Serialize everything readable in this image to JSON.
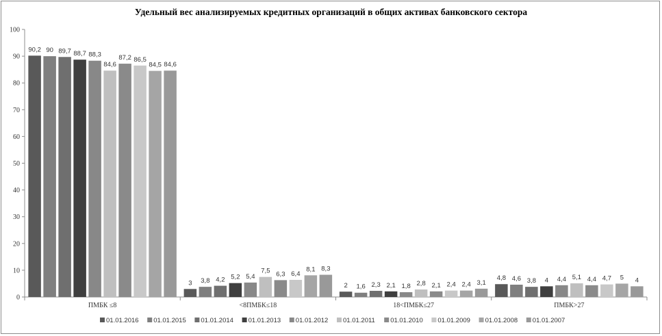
{
  "chart_data": {
    "type": "bar",
    "title": "Удельный вес анализируемых кредитных организаций в общих активах банковского сектора",
    "xlabel": "",
    "ylabel": "",
    "ylim": [
      0,
      100
    ],
    "yticks": [
      "0",
      "10",
      "20",
      "30",
      "40",
      "50",
      "60",
      "70",
      "80",
      "90",
      "100"
    ],
    "grid": false,
    "legend_position": "bottom",
    "categories": [
      "ПМБК ≤8",
      "<8ПМБК≤18",
      "18<ПМБК≤27",
      "ПМБК>27"
    ],
    "series": [
      {
        "name": "01.01.2016",
        "color": "#595959",
        "values": [
          90.2,
          3,
          2,
          4.8
        ],
        "labels": [
          "90,2",
          "3",
          "2",
          "4,8"
        ]
      },
      {
        "name": "01.01.2015",
        "color": "#7f7f7f",
        "values": [
          90,
          3.8,
          1.6,
          4.6
        ],
        "labels": [
          "90",
          "3,8",
          "1,6",
          "4,6"
        ]
      },
      {
        "name": "01.01.2014",
        "color": "#6f6f6f",
        "values": [
          89.7,
          4.2,
          2.3,
          3.8
        ],
        "labels": [
          "89,7",
          "4,2",
          "2,3",
          "3,8"
        ]
      },
      {
        "name": "01.01.2013",
        "color": "#3f3f3f",
        "values": [
          88.7,
          5.2,
          2.1,
          4
        ],
        "labels": [
          "88,7",
          "5,2",
          "2,1",
          "4"
        ]
      },
      {
        "name": "01.01.2012",
        "color": "#888888",
        "values": [
          88.3,
          5.4,
          1.8,
          4.4
        ],
        "labels": [
          "88,3",
          "5,4",
          "1,8",
          "4,4"
        ]
      },
      {
        "name": "01.01.2011",
        "color": "#bfbfbf",
        "values": [
          84.6,
          7.5,
          2.8,
          5.1
        ],
        "labels": [
          "84,6",
          "7,5",
          "2,8",
          "5,1"
        ]
      },
      {
        "name": "01.01.2010",
        "color": "#8a8a8a",
        "values": [
          87.2,
          6.3,
          2.1,
          4.4
        ],
        "labels": [
          "87,2",
          "6,3",
          "2,1",
          "4,4"
        ]
      },
      {
        "name": "01.01.2009",
        "color": "#c8c8c8",
        "values": [
          86.5,
          6.4,
          2.4,
          4.7
        ],
        "labels": [
          "86,5",
          "6,4",
          "2,4",
          "4,7"
        ]
      },
      {
        "name": "01.01.2008",
        "color": "#a5a5a5",
        "values": [
          84.5,
          8.1,
          2.4,
          5
        ],
        "labels": [
          "84,5",
          "8,1",
          "2,4",
          "5"
        ]
      },
      {
        "name": "01.01.2007",
        "color": "#999999",
        "values": [
          84.6,
          8.3,
          3.1,
          4
        ],
        "labels": [
          "84,6",
          "8,3",
          "3,1",
          "4"
        ]
      }
    ]
  }
}
